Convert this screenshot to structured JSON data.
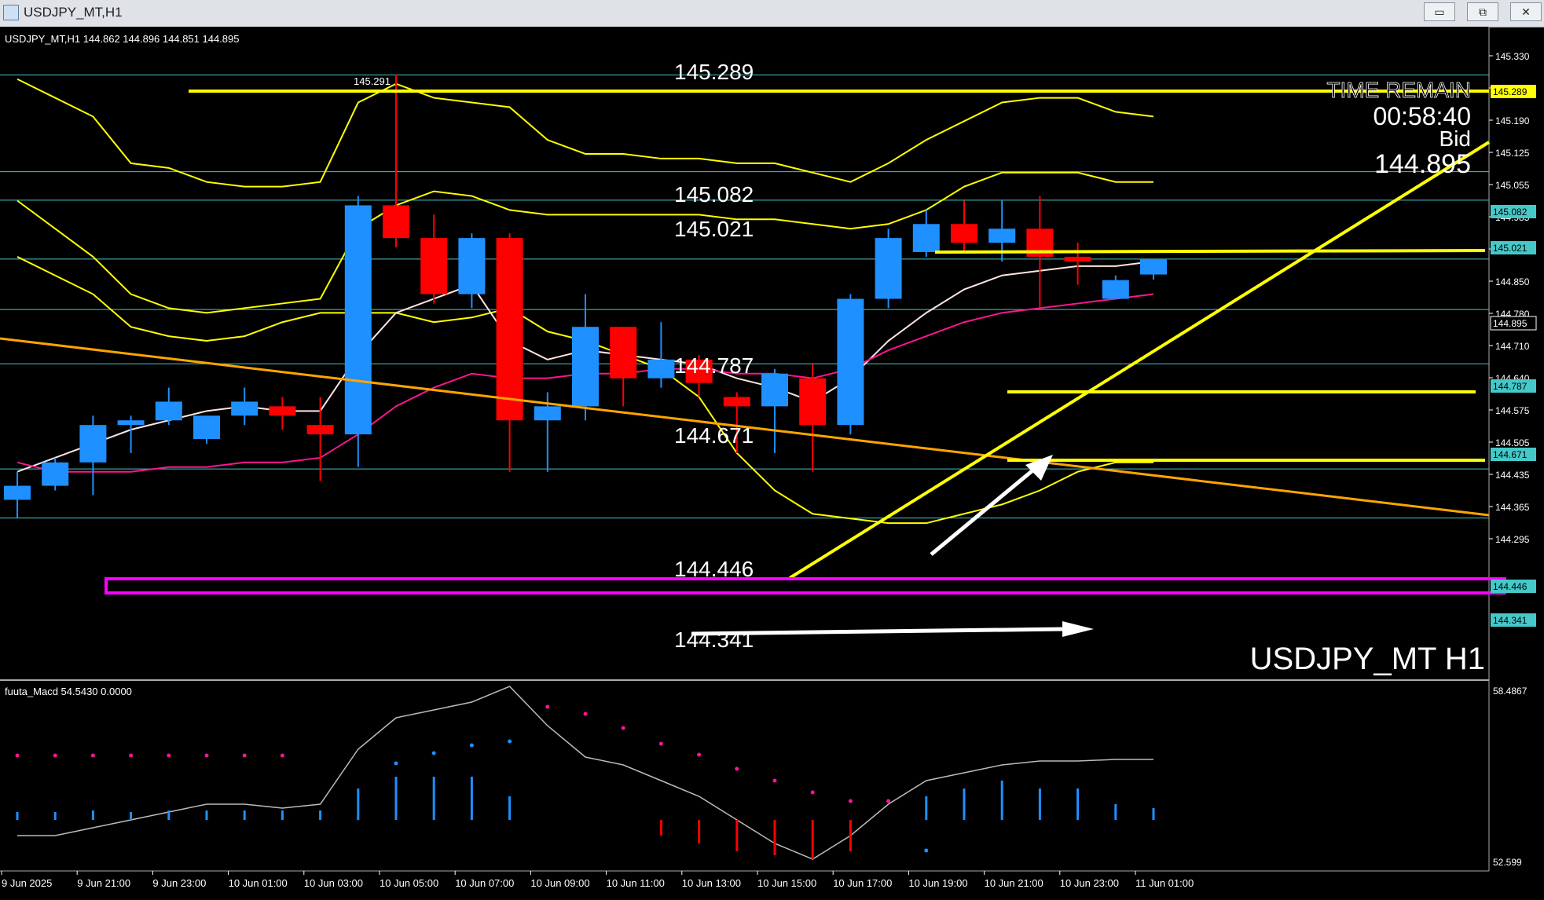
{
  "window": {
    "title": "USDJPY_MT,H1",
    "buttons": {
      "minimize": "▭",
      "restore": "⧉",
      "close": "✕"
    }
  },
  "header": {
    "symbol_info": "USDJPY_MT,H1  144.862 144.896 144.851 144.895"
  },
  "overlay": {
    "time_remain_label": "TIME REMAIN",
    "time_remain_value": "00:58:40",
    "bid_label": "Bid",
    "bid_value": "144.895",
    "watermark": "USDJPY_MT H1",
    "high_marker": "145.291"
  },
  "level_labels": [
    "145.289",
    "145.082",
    "145.021",
    "144.787",
    "144.671",
    "144.446",
    "144.341"
  ],
  "price_axis": {
    "ticks": [
      "145.330",
      "145.260",
      "145.190",
      "145.125",
      "145.055",
      "144.985",
      "144.915",
      "144.850",
      "144.780",
      "144.710",
      "144.640",
      "144.575",
      "144.505",
      "144.435",
      "144.365",
      "144.295"
    ],
    "tags": [
      "145.289",
      "145.082",
      "145.021",
      "144.895",
      "144.787",
      "144.671",
      "144.446",
      "144.341"
    ]
  },
  "time_axis": {
    "labels": [
      "9 Jun 2025",
      "9 Jun 21:00",
      "9 Jun 23:00",
      "10 Jun 01:00",
      "10 Jun 03:00",
      "10 Jun 05:00",
      "10 Jun 07:00",
      "10 Jun 09:00",
      "10 Jun 11:00",
      "10 Jun 13:00",
      "10 Jun 15:00",
      "10 Jun 17:00",
      "10 Jun 19:00",
      "10 Jun 21:00",
      "10 Jun 23:00",
      "11 Jun 01:00"
    ]
  },
  "indicator": {
    "label": "fuuta_Macd 54.5430  0.0000",
    "axis_top": "58.4867",
    "axis_bottom": "52.599"
  },
  "chart_data": {
    "type": "candlestick",
    "symbol": "USDJPY_MT",
    "timeframe": "H1",
    "colors": {
      "up": "#1e90ff",
      "down": "#ff0000",
      "level": "#ffff00",
      "support": "#ff00ff",
      "grid_line": "#46c8c8"
    },
    "ohlc": [
      {
        "o": 144.38,
        "h": 144.44,
        "l": 144.34,
        "c": 144.41
      },
      {
        "o": 144.41,
        "h": 144.47,
        "l": 144.4,
        "c": 144.46
      },
      {
        "o": 144.46,
        "h": 144.56,
        "l": 144.39,
        "c": 144.54
      },
      {
        "o": 144.54,
        "h": 144.56,
        "l": 144.48,
        "c": 144.55
      },
      {
        "o": 144.55,
        "h": 144.62,
        "l": 144.54,
        "c": 144.59
      },
      {
        "o": 144.51,
        "h": 144.56,
        "l": 144.5,
        "c": 144.56
      },
      {
        "o": 144.56,
        "h": 144.62,
        "l": 144.54,
        "c": 144.59
      },
      {
        "o": 144.58,
        "h": 144.6,
        "l": 144.53,
        "c": 144.56
      },
      {
        "o": 144.54,
        "h": 144.6,
        "l": 144.42,
        "c": 144.52
      },
      {
        "o": 144.52,
        "h": 145.03,
        "l": 144.45,
        "c": 145.01
      },
      {
        "o": 145.01,
        "h": 145.29,
        "l": 144.92,
        "c": 144.94
      },
      {
        "o": 144.94,
        "h": 144.99,
        "l": 144.8,
        "c": 144.82
      },
      {
        "o": 144.82,
        "h": 144.95,
        "l": 144.79,
        "c": 144.94
      },
      {
        "o": 144.94,
        "h": 144.95,
        "l": 144.44,
        "c": 144.55
      },
      {
        "o": 144.55,
        "h": 144.61,
        "l": 144.44,
        "c": 144.58
      },
      {
        "o": 144.58,
        "h": 144.82,
        "l": 144.55,
        "c": 144.75
      },
      {
        "o": 144.75,
        "h": 144.75,
        "l": 144.58,
        "c": 144.64
      },
      {
        "o": 144.64,
        "h": 144.76,
        "l": 144.62,
        "c": 144.68
      },
      {
        "o": 144.68,
        "h": 144.69,
        "l": 144.6,
        "c": 144.63
      },
      {
        "o": 144.6,
        "h": 144.61,
        "l": 144.48,
        "c": 144.58
      },
      {
        "o": 144.58,
        "h": 144.66,
        "l": 144.48,
        "c": 144.65
      },
      {
        "o": 144.64,
        "h": 144.67,
        "l": 144.44,
        "c": 144.54
      },
      {
        "o": 144.54,
        "h": 144.82,
        "l": 144.52,
        "c": 144.81
      },
      {
        "o": 144.81,
        "h": 144.96,
        "l": 144.79,
        "c": 144.94
      },
      {
        "o": 144.91,
        "h": 145.0,
        "l": 144.9,
        "c": 144.97
      },
      {
        "o": 144.97,
        "h": 145.02,
        "l": 144.91,
        "c": 144.93
      },
      {
        "o": 144.93,
        "h": 145.02,
        "l": 144.89,
        "c": 144.96
      },
      {
        "o": 144.96,
        "h": 145.03,
        "l": 144.79,
        "c": 144.9
      },
      {
        "o": 144.9,
        "h": 144.93,
        "l": 144.84,
        "c": 144.89
      },
      {
        "o": 144.81,
        "h": 144.86,
        "l": 144.81,
        "c": 144.85
      },
      {
        "o": 144.862,
        "h": 144.896,
        "l": 144.851,
        "c": 144.895
      }
    ],
    "horizontal_levels": [
      145.289,
      145.082,
      145.021,
      144.895,
      144.787,
      144.671,
      144.446,
      144.341
    ],
    "ylim": [
      144.29,
      145.36
    ]
  }
}
